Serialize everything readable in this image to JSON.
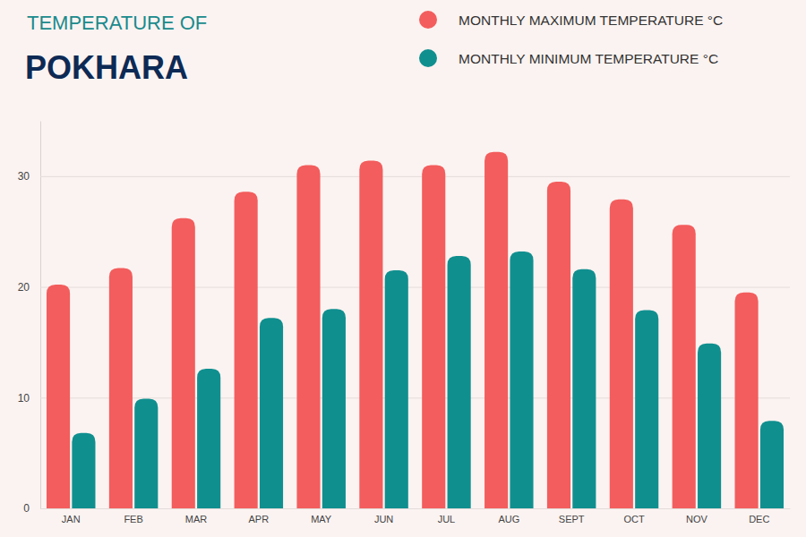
{
  "chart_data": {
    "type": "bar",
    "subtitle": "TEMPERATURE OF",
    "title": "POKHARA",
    "categories": [
      "JAN",
      "FEB",
      "MAR",
      "APR",
      "MAY",
      "JUN",
      "JUL",
      "AUG",
      "SEPT",
      "OCT",
      "NOV",
      "DEC"
    ],
    "series": [
      {
        "name": "MONTHLY MAXIMUM TEMPERATURE °C",
        "color": "#f35d5d",
        "values": [
          20.2,
          21.7,
          26.2,
          28.6,
          31.0,
          31.4,
          31.0,
          32.2,
          29.5,
          27.9,
          25.6,
          19.5
        ]
      },
      {
        "name": "MONTHLY MINIMUM TEMPERATURE °C",
        "color": "#108f8f",
        "values": [
          6.8,
          9.9,
          12.6,
          17.2,
          18.0,
          21.5,
          22.8,
          23.2,
          21.6,
          17.9,
          14.9,
          7.9
        ]
      }
    ],
    "ylim": [
      0,
      35
    ],
    "yticks": [
      0,
      10,
      20,
      30
    ],
    "grid": true,
    "legend": "top-right"
  }
}
